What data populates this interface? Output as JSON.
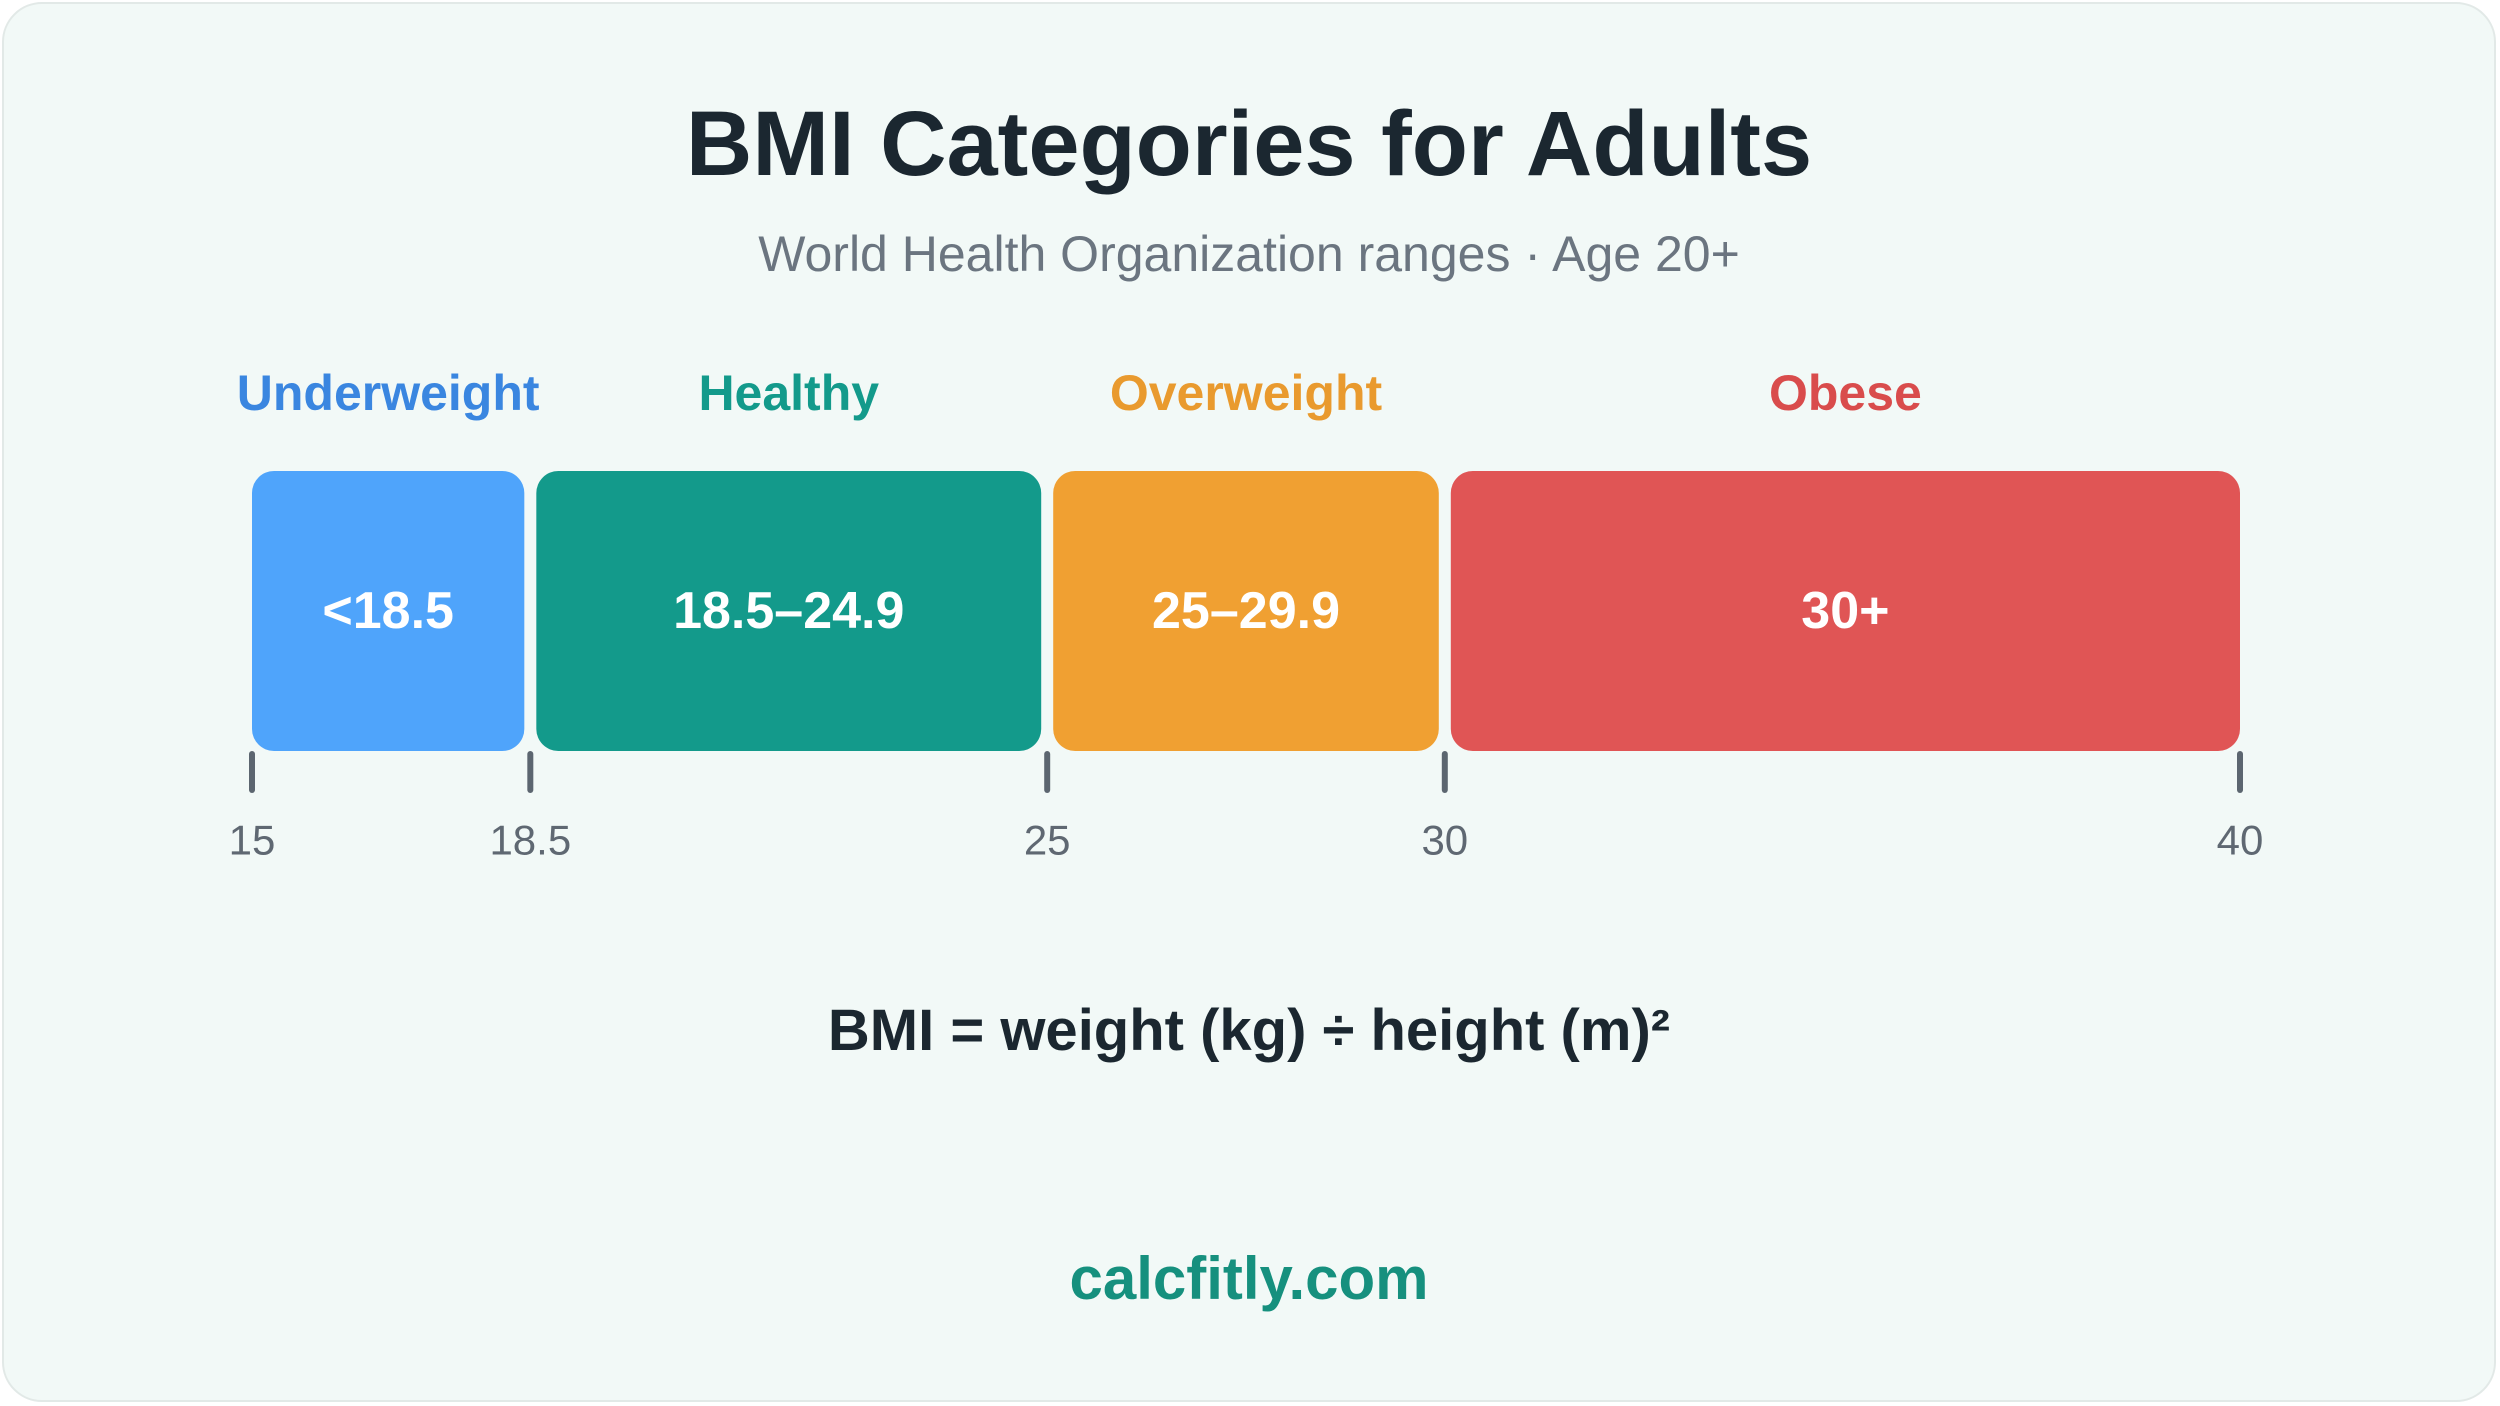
{
  "title": "BMI Categories for Adults",
  "subtitle": "World Health Organization ranges · Age 20+",
  "formula": "BMI = weight (kg) ÷ height (m)²",
  "brand": "calcfitly.com",
  "chart_data": {
    "type": "bar",
    "orientation": "horizontal-segmented",
    "xlim": [
      15,
      40
    ],
    "ticks": [
      15,
      18.5,
      25,
      30,
      40
    ],
    "tick_labels": [
      "15",
      "18.5",
      "25",
      "30",
      "40"
    ],
    "grid": false,
    "categories": [
      {
        "name": "Underweight",
        "range_label": "<18.5",
        "start": 15,
        "end": 18.5,
        "color": "#4fa4fb",
        "label_color": "#3a86e0"
      },
      {
        "name": "Healthy",
        "range_label": "18.5–24.9",
        "start": 18.5,
        "end": 25,
        "color": "#139a8b",
        "label_color": "#139a8b"
      },
      {
        "name": "Overweight",
        "range_label": "25–29.9",
        "start": 25,
        "end": 30,
        "color": "#f0a032",
        "label_color": "#e99a2e"
      },
      {
        "name": "Obese",
        "range_label": "30+",
        "start": 30,
        "end": 40,
        "color": "#e05555",
        "label_color": "#d94c4c"
      }
    ],
    "value_label_color": "#ffffff",
    "tick_color": "#5c6670"
  }
}
